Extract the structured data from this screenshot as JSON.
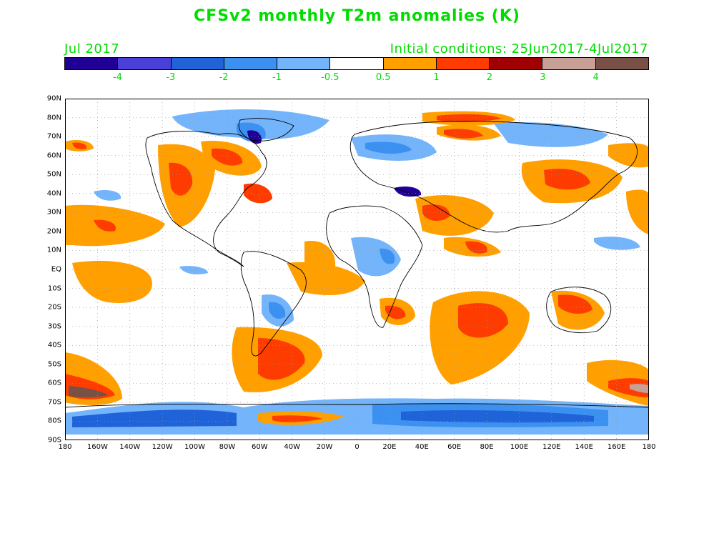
{
  "title": "CFSv2 monthly T2m anomalies (K)",
  "subtitle_left": "Jul 2017",
  "subtitle_right": "Initial conditions: 25Jun2017-4Jul2017",
  "colorbar": {
    "colors": [
      "#200096",
      "#4a3fd8",
      "#2062d8",
      "#3c91f0",
      "#74b4fa",
      "#ffffff",
      "#ffa000",
      "#ff3c00",
      "#a00000",
      "#c8a096",
      "#785046"
    ],
    "labels": [
      "-4",
      "-3",
      "-2",
      "-1",
      "-0.5",
      "0.5",
      "1",
      "2",
      "3",
      "4"
    ]
  },
  "map": {
    "lat_labels": [
      "90N",
      "80N",
      "70N",
      "60N",
      "50N",
      "40N",
      "30N",
      "20N",
      "10N",
      "EQ",
      "10S",
      "20S",
      "30S",
      "40S",
      "50S",
      "60S",
      "70S",
      "80S",
      "90S"
    ],
    "lon_labels": [
      "180",
      "160W",
      "140W",
      "120W",
      "100W",
      "80W",
      "60W",
      "40W",
      "20W",
      "0",
      "20E",
      "40E",
      "60E",
      "80E",
      "100E",
      "120E",
      "140E",
      "160E",
      "180"
    ]
  }
}
